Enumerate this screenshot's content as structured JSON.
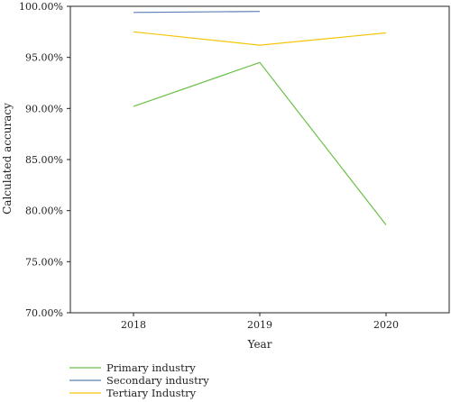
{
  "chart_data": {
    "type": "line",
    "x": [
      "2018",
      "2019",
      "2020"
    ],
    "series": [
      {
        "name": "Primary industry",
        "color": "#6cbf47",
        "values": [
          90.2,
          94.5,
          78.6
        ]
      },
      {
        "name": "Secondary industry",
        "color": "#5b7fb5",
        "values": [
          99.4,
          99.5,
          null
        ]
      },
      {
        "name": "Tertiary Industry",
        "color": "#f6c60a",
        "values": [
          97.5,
          96.2,
          97.4
        ]
      }
    ],
    "xlabel": "Year",
    "ylabel": "Calculated accuracy",
    "ylim": [
      70,
      100
    ],
    "yticks": [
      "100.00%",
      "95.00%",
      "90.00%",
      "85.00%",
      "80.00%",
      "75.00%",
      "70.00%"
    ],
    "ytick_values": [
      100,
      95,
      90,
      85,
      80,
      75,
      70
    ],
    "grid": false,
    "legend_position": "bottom-left"
  }
}
